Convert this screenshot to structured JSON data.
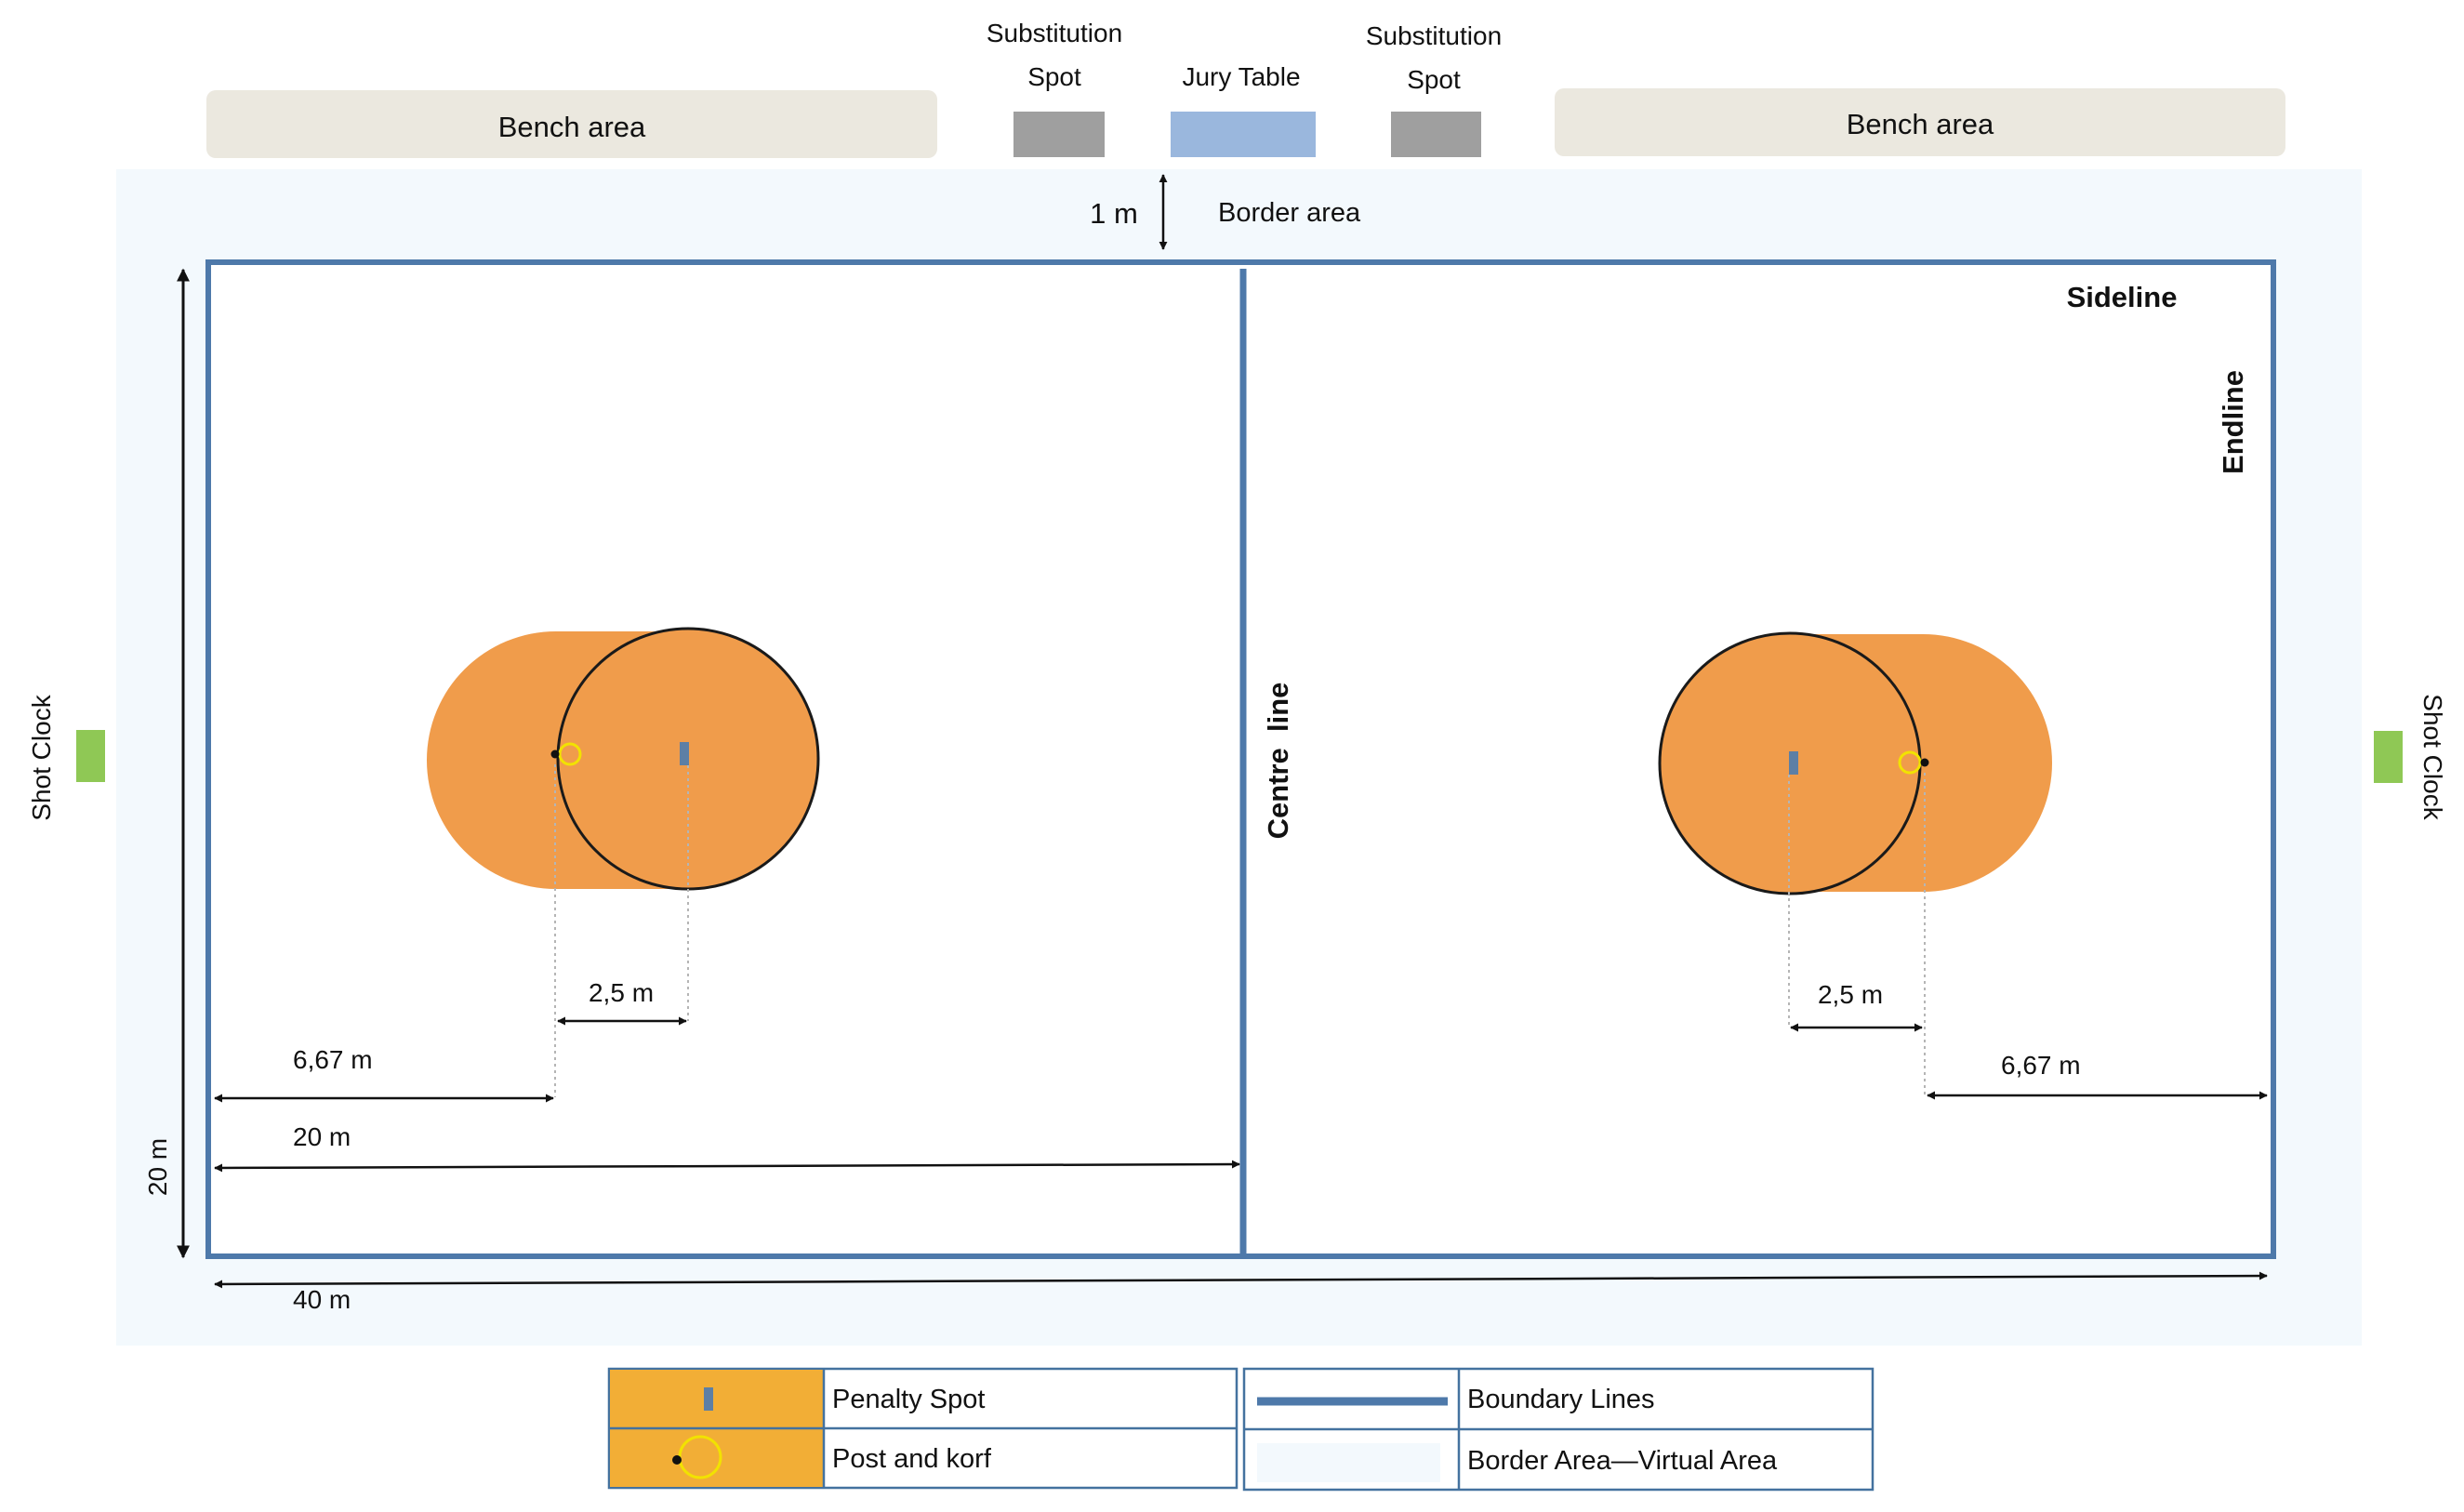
{
  "top": {
    "bench_left": "Bench area",
    "bench_right": "Bench area",
    "substitution_left_line1": "Substitution",
    "substitution_left_line2": "Spot",
    "substitution_right_line1": "Substitution",
    "substitution_right_line2": "Spot",
    "jury_table": "Jury Table"
  },
  "border": {
    "gap_label": "1 m",
    "label": "Border area"
  },
  "field": {
    "sideline": "Sideline",
    "endline": "Endline",
    "centre_line": "Centre  line",
    "shot_clock_left": "Shot Clock",
    "shot_clock_right": "Shot Clock"
  },
  "dimensions": {
    "left_post_offset": "2,5 m",
    "right_post_offset": "2,5 m",
    "left_penalty_distance": "6,67 m",
    "right_penalty_distance": "6,67 m",
    "half_length": "20 m",
    "width": "20 m",
    "length": "40 m"
  },
  "legend": {
    "penalty_spot": "Penalty Spot",
    "post_and_korf": "Post and korf",
    "boundary_lines": "Boundary Lines",
    "border_area": "Border Area—Virtual Area"
  },
  "colors": {
    "border_area": "#f3f9fd",
    "boundary_line": "#4e79aa",
    "zone_orange": "#f09c4b",
    "bench": "#ebe8df",
    "substitution_spot": "#9f9f9f",
    "jury_table": "#9ab7dd",
    "shot_clock": "#8fc855",
    "korf": "#f2e200",
    "penalty_spot": "#5d7fa5"
  }
}
